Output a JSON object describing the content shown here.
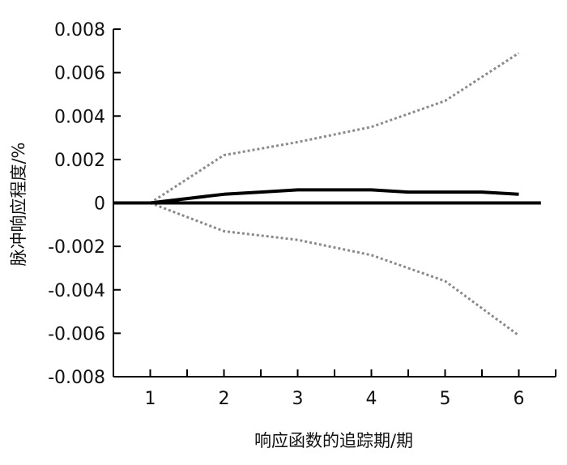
{
  "chart_data": {
    "type": "line",
    "xlabel": "响应函数的追踪期/期",
    "ylabel": "脉冲响应程度/%",
    "x_ticks": [
      "1",
      "2",
      "3",
      "4",
      "5",
      "6"
    ],
    "y_ticks": [
      "0.008",
      "0.006",
      "0.004",
      "0.002",
      "0",
      "-0.002",
      "-0.004",
      "-0.006",
      "-0.008"
    ],
    "xlim": [
      0.5,
      6.5
    ],
    "ylim": [
      -0.008,
      0.008
    ],
    "grid": false,
    "legend": "none",
    "series": [
      {
        "style": "solid",
        "color": "#000000",
        "x": [
          1,
          1.5,
          2,
          2.5,
          3,
          4,
          4.5,
          5,
          5.5,
          6
        ],
        "y": [
          0,
          0.0002,
          0.0004,
          0.0005,
          0.0006,
          0.0006,
          0.0005,
          0.0005,
          0.0005,
          0.0004
        ]
      },
      {
        "style": "dotted",
        "color": "#8a8a8a",
        "x": [
          1,
          2,
          3,
          4,
          5,
          6
        ],
        "y": [
          0,
          0.0022,
          0.0028,
          0.0035,
          0.0047,
          0.0069
        ]
      },
      {
        "style": "dotted",
        "color": "#8a8a8a",
        "x": [
          1,
          2,
          3,
          4,
          5,
          6
        ],
        "y": [
          0,
          -0.0013,
          -0.0017,
          -0.0024,
          -0.0036,
          -0.0061
        ]
      },
      {
        "style": "zero",
        "color": "#000000",
        "x": [
          0.5,
          6.3
        ],
        "y": [
          0,
          0
        ]
      }
    ]
  }
}
